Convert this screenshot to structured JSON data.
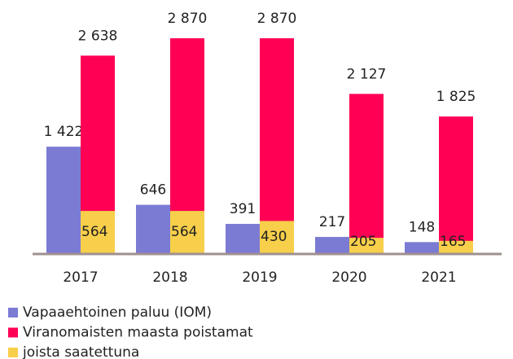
{
  "chart_data": {
    "type": "bar",
    "categories": [
      "2017",
      "2018",
      "2019",
      "2020",
      "2021"
    ],
    "series": [
      {
        "name": "Vapaaehtoinen paluu (IOM)",
        "color": "#7b7bd4",
        "values": [
          1422,
          646,
          391,
          217,
          148
        ],
        "value_labels": [
          "1 422",
          "646",
          "391",
          "217",
          "148"
        ]
      },
      {
        "name": "Viranomaisten maasta poistamat",
        "color": "#ff0055",
        "values": [
          2638,
          2870,
          2870,
          2127,
          1825
        ],
        "value_labels": [
          "2 638",
          "2 870",
          "2 870",
          "2 127",
          "1 825"
        ]
      },
      {
        "name": "joista saatettuna",
        "color": "#f7cf4a",
        "values": [
          564,
          564,
          430,
          205,
          165
        ],
        "value_labels": [
          "564",
          "564",
          "430",
          "205",
          "165"
        ]
      }
    ],
    "legend": "bottom-left"
  }
}
